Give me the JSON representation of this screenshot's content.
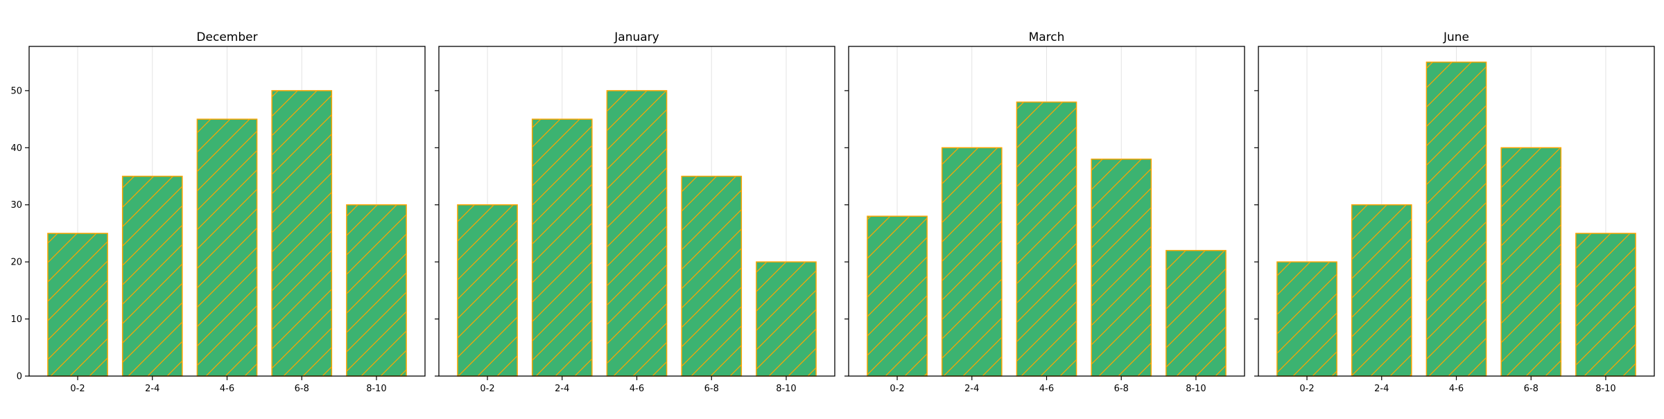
{
  "chart_data": [
    {
      "type": "bar",
      "title": "December",
      "categories": [
        "0-2",
        "2-4",
        "4-6",
        "6-8",
        "8-10"
      ],
      "values": [
        25,
        35,
        45,
        50,
        30
      ],
      "ylim": [
        0,
        57.75
      ],
      "yticks": [
        0,
        10,
        20,
        30,
        40,
        50
      ],
      "grid": "x-only",
      "bar_color": "#3cb371",
      "edge_color": "#ffa500",
      "hatch": "diagonal"
    },
    {
      "type": "bar",
      "title": "January",
      "categories": [
        "0-2",
        "2-4",
        "4-6",
        "6-8",
        "8-10"
      ],
      "values": [
        30,
        45,
        50,
        35,
        20
      ],
      "ylim": [
        0,
        57.75
      ],
      "yticks": [
        0,
        10,
        20,
        30,
        40,
        50
      ],
      "grid": "x-only",
      "bar_color": "#3cb371",
      "edge_color": "#ffa500",
      "hatch": "diagonal"
    },
    {
      "type": "bar",
      "title": "March",
      "categories": [
        "0-2",
        "2-4",
        "4-6",
        "6-8",
        "8-10"
      ],
      "values": [
        28,
        40,
        48,
        38,
        22
      ],
      "ylim": [
        0,
        57.75
      ],
      "yticks": [
        0,
        10,
        20,
        30,
        40,
        50
      ],
      "grid": "x-only",
      "bar_color": "#3cb371",
      "edge_color": "#ffa500",
      "hatch": "diagonal"
    },
    {
      "type": "bar",
      "title": "June",
      "categories": [
        "0-2",
        "2-4",
        "4-6",
        "6-8",
        "8-10"
      ],
      "values": [
        20,
        30,
        55,
        40,
        25
      ],
      "ylim": [
        0,
        57.75
      ],
      "yticks": [
        0,
        10,
        20,
        30,
        40,
        50
      ],
      "grid": "x-only",
      "bar_color": "#3cb371",
      "edge_color": "#ffa500",
      "hatch": "diagonal"
    }
  ]
}
